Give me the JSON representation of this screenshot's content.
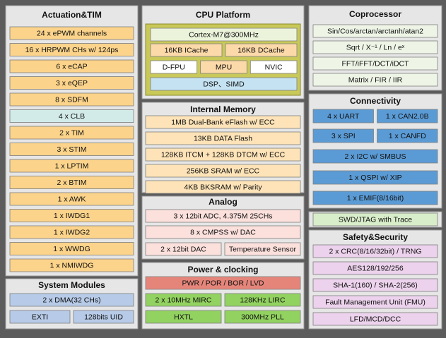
{
  "panels": [
    {
      "title": "Actuation&TIM",
      "rows": [
        [
          "24 x ePWM channels"
        ],
        [
          "16 x HRPWM CHs w/ 124ps"
        ],
        [
          "6 x eCAP"
        ],
        [
          "3 x eQEP"
        ],
        [
          "8 x SDFM"
        ],
        [
          "4 x CLB"
        ],
        [
          "2 x TIM"
        ],
        [
          "3 x STIM"
        ],
        [
          "1 x LPTIM"
        ],
        [
          "2 x BTIM"
        ],
        [
          "1 x AWK"
        ],
        [
          "1 x IWDG1"
        ],
        [
          "1 x IWDG2"
        ],
        [
          "1 x WWDG"
        ],
        [
          "1 x NMIWDG"
        ]
      ]
    },
    {
      "title": "System Modules",
      "rows": [
        [
          "2 x DMA(32 CHs)"
        ],
        [
          "EXTI",
          "128bits UID"
        ]
      ]
    },
    {
      "title": "CPU Platform",
      "rows": [
        [
          "Cortex-M7@300MHz"
        ],
        [
          "16KB ICache",
          "16KB DCache"
        ],
        [
          "D-FPU",
          "MPU",
          "NVIC"
        ],
        [
          "DSP、SIMD"
        ]
      ]
    },
    {
      "title": "Internal Memory",
      "rows": [
        [
          "1MB Dual-Bank eFlash w/ ECC"
        ],
        [
          "13KB DATA Flash"
        ],
        [
          "128KB ITCM + 128KB DTCM w/ ECC"
        ],
        [
          "256KB SRAM w/ ECC"
        ],
        [
          "4KB BKSRAM w/ Parity"
        ]
      ]
    },
    {
      "title": "Analog",
      "rows": [
        [
          "3 x 12bit ADC, 4.375M 25CHs"
        ],
        [
          "8 x CMPSS w/ DAC"
        ],
        [
          "2 x 12bit DAC",
          "Temperature Sensor"
        ]
      ]
    },
    {
      "title": "Power & clocking",
      "rows": [
        [
          "PWR / POR / BOR / LVD"
        ],
        [
          "2 x 10MHz MIRC",
          "128KHz LIRC"
        ],
        [
          "HXTL",
          "300MHz PLL"
        ]
      ]
    },
    {
      "title": "Coprocessor",
      "rows": [
        [
          "Sin/Cos/arctan/arctanh/atan2"
        ],
        [
          "Sqrt / X⁻¹ / Ln / eˣ"
        ],
        [
          "FFT/iFFT/DCT/iDCT"
        ],
        [
          "Matrix / FIR / IIR"
        ]
      ]
    },
    {
      "title": "Connectivity",
      "rows": [
        [
          "4 x UART",
          "1 x CAN2.0B"
        ],
        [
          "3 x SPI",
          "1 x CANFD"
        ],
        [
          "2 x I2C w/ SMBUS"
        ],
        [
          "1 x QSPI w/ XIP"
        ],
        [
          "1 x EMIF(8/16bit)"
        ]
      ]
    },
    {
      "rows": [
        [
          "SWD/JTAG with Trace"
        ]
      ]
    },
    {
      "title": "Safety&Security",
      "rows": [
        [
          "2 x CRC(8/16/32bit) / TRNG"
        ],
        [
          "AES128/192/256"
        ],
        [
          "SHA-1(160) / SHA-2(256)"
        ],
        [
          "Fault Management Unit (FMU)"
        ],
        [
          "LFD/MCD/DCC"
        ]
      ]
    }
  ]
}
